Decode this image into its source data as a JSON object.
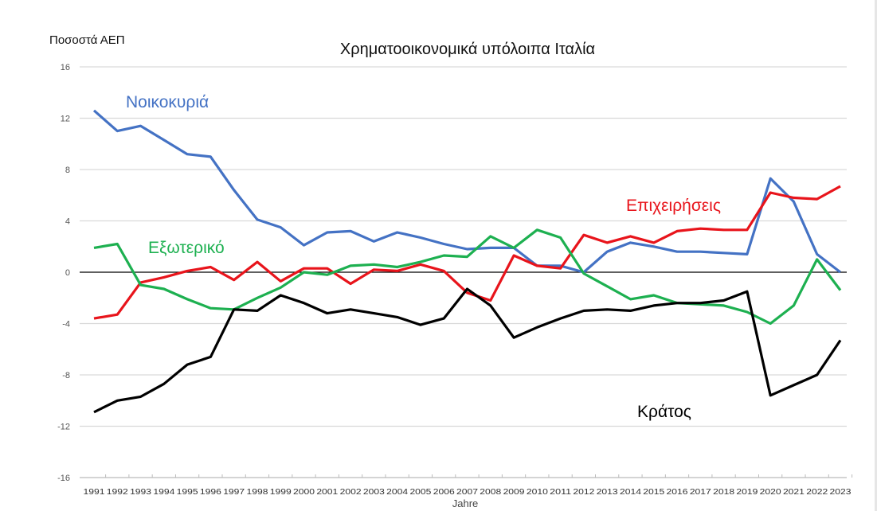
{
  "chart_data": {
    "type": "line",
    "title": "Χρηματοοικονομικά υπόλοιπα Ιταλία",
    "ylabel": "Ποσοστά ΑΕΠ",
    "xlabel": "Jahre",
    "ylim": [
      -16,
      16
    ],
    "yticks": [
      16,
      12,
      8,
      4,
      0,
      -4,
      -8,
      -12,
      -16
    ],
    "grid": true,
    "x": [
      1991,
      1992,
      1993,
      1994,
      1995,
      1996,
      1997,
      1998,
      1999,
      2000,
      2001,
      2002,
      2003,
      2004,
      2005,
      2006,
      2007,
      2008,
      2009,
      2010,
      2011,
      2012,
      2013,
      2014,
      2015,
      2016,
      2017,
      2018,
      2019,
      2020,
      2021,
      2022,
      2023
    ],
    "series": [
      {
        "name": "Νοικοκυριά",
        "color": "#4472C4",
        "values": [
          12.6,
          11.0,
          11.4,
          10.3,
          9.2,
          9.0,
          6.4,
          4.1,
          3.5,
          2.1,
          3.1,
          3.2,
          2.4,
          3.1,
          2.7,
          2.2,
          1.8,
          1.9,
          1.9,
          0.5,
          0.5,
          0.0,
          1.6,
          2.3,
          2.0,
          1.6,
          1.6,
          1.5,
          1.4,
          7.3,
          5.5,
          1.4,
          0.0
        ]
      },
      {
        "name": "Επιχειρήσεις",
        "color": "#E8141B",
        "values": [
          -3.6,
          -3.3,
          -0.8,
          -0.4,
          0.1,
          0.4,
          -0.6,
          0.8,
          -0.7,
          0.3,
          0.3,
          -0.9,
          0.2,
          0.1,
          0.6,
          0.1,
          -1.6,
          -2.2,
          1.3,
          0.5,
          0.3,
          2.9,
          2.3,
          2.8,
          2.3,
          3.2,
          3.4,
          3.3,
          3.3,
          6.2,
          5.8,
          5.7,
          6.7
        ]
      },
      {
        "name": "Εξωτερικό",
        "color": "#1DB050",
        "values": [
          1.9,
          2.2,
          -1.0,
          -1.3,
          -2.1,
          -2.8,
          -2.9,
          -2.0,
          -1.2,
          0.0,
          -0.2,
          0.5,
          0.6,
          0.4,
          0.8,
          1.3,
          1.2,
          2.8,
          1.9,
          3.3,
          2.7,
          -0.1,
          -1.1,
          -2.1,
          -1.8,
          -2.4,
          -2.5,
          -2.6,
          -3.1,
          -4.0,
          -2.6,
          1.0,
          -1.4
        ]
      },
      {
        "name": "Κράτος",
        "color": "#000000",
        "values": [
          -10.9,
          -10.0,
          -9.7,
          -8.7,
          -7.2,
          -6.6,
          -2.9,
          -3.0,
          -1.8,
          -2.4,
          -3.2,
          -2.9,
          -3.2,
          -3.5,
          -4.1,
          -3.6,
          -1.3,
          -2.6,
          -5.1,
          -4.3,
          -3.6,
          -3.0,
          -2.9,
          -3.0,
          -2.6,
          -2.4,
          -2.4,
          -2.2,
          -1.5,
          -9.6,
          -8.8,
          -8.0,
          -5.3
        ]
      }
    ],
    "legend": "inline labels"
  }
}
